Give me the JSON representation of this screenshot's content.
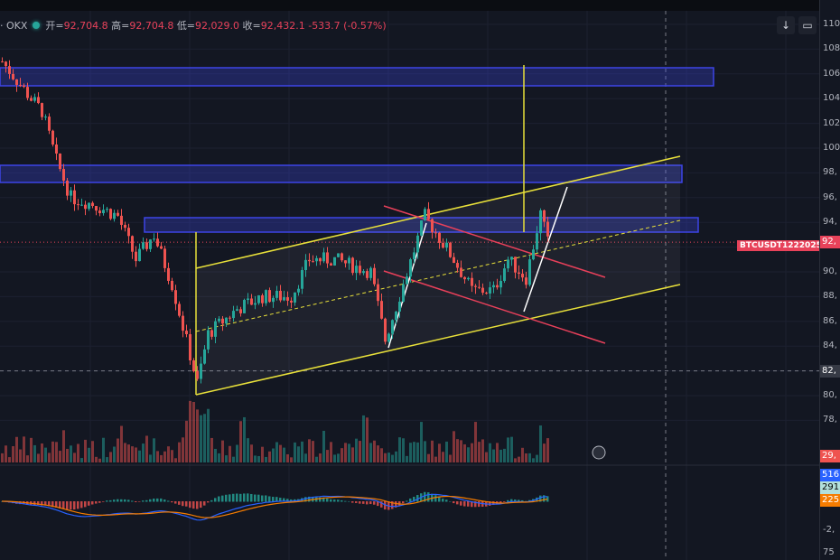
{
  "header": {
    "exchange": "· OKX",
    "open_label": "开=",
    "open": "92,704.8",
    "high_label": "高=",
    "high": "92,704.8",
    "low_label": "低=",
    "low": "92,029.0",
    "close_label": "收=",
    "close": "92,432.1",
    "change": "-533.7 (-0.57%)"
  },
  "buttons": {
    "scroll_down": "↓",
    "fullscreen": "▭"
  },
  "symbol_tag": "BTCUSDT1222025",
  "colors": {
    "up": "#26a69a",
    "down": "#ef5350",
    "price_line": "#e8425a",
    "channel": "#e8e03a",
    "zone": "#3d45e6",
    "red_channel": "#e8405a"
  },
  "chart_data": {
    "type": "candlestick",
    "price_axis_ticks": [
      "110",
      "108",
      "106",
      "104",
      "102",
      "100",
      "98,",
      "96,",
      "94,",
      "92,",
      "90,",
      "88,",
      "86,",
      "84,",
      "82,",
      "80,",
      "78,"
    ],
    "price_axis_values": [
      110,
      108,
      106,
      104,
      102,
      100,
      98,
      96,
      94,
      92,
      90,
      88,
      86,
      84,
      82,
      80,
      78
    ],
    "ylim": [
      78,
      110
    ],
    "current_price": 92.4,
    "crosshair_price_label": "82,",
    "crosshair_price": 82,
    "price_path_thousands": [
      [
        0,
        107
      ],
      [
        8,
        104
      ],
      [
        11,
        103
      ],
      [
        15,
        99
      ],
      [
        19,
        96
      ],
      [
        25,
        95.5
      ],
      [
        32,
        94.5
      ],
      [
        37,
        91
      ],
      [
        42,
        93
      ],
      [
        47,
        89
      ],
      [
        54,
        81
      ],
      [
        57,
        85
      ],
      [
        65,
        87
      ],
      [
        72,
        88
      ],
      [
        80,
        88
      ],
      [
        85,
        91
      ],
      [
        92,
        91
      ],
      [
        102,
        90
      ],
      [
        106,
        84.5
      ],
      [
        111,
        89
      ],
      [
        117,
        94.5
      ],
      [
        125,
        91
      ],
      [
        130,
        88.5
      ],
      [
        136,
        88.5
      ],
      [
        140,
        91
      ],
      [
        145,
        89.5
      ],
      [
        149,
        94.7
      ],
      [
        151,
        92.4
      ]
    ],
    "volume_tag": "29,",
    "macd_tags": [
      {
        "text": "516",
        "color": "#2962ff"
      },
      {
        "text": "291",
        "color": "#b2dfdb"
      },
      {
        "text": "225",
        "color": "#f57c00"
      }
    ],
    "macd_ticks": [
      "-2,",
      "75"
    ]
  }
}
